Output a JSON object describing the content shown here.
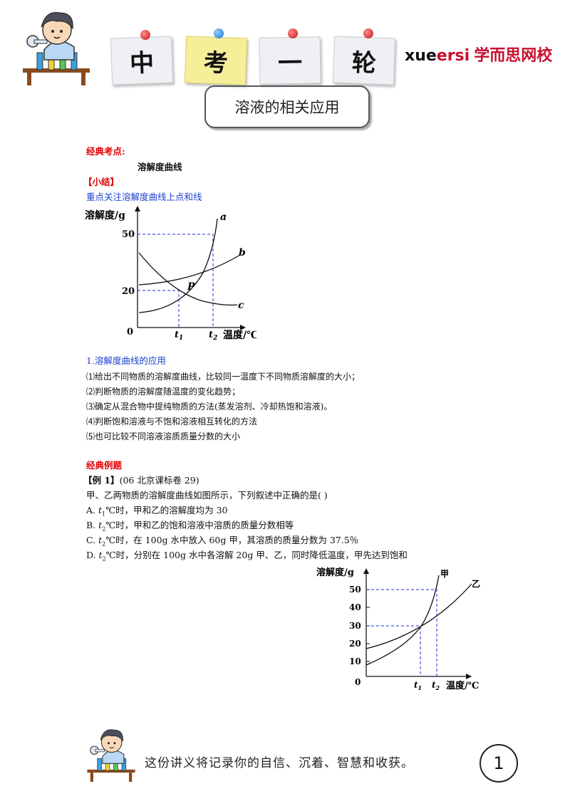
{
  "header": {
    "notes": [
      "中",
      "考",
      "一",
      "轮"
    ],
    "brand_en_1": "xue",
    "brand_en_2": "ersi",
    "brand_cn": "学而思网校"
  },
  "title": "溶液的相关应用",
  "section1": {
    "heading": "经典考点:",
    "subheading": "溶解度曲线",
    "summary_tag": "【小结】",
    "summary_text": "重点关注溶解度曲线上点和线"
  },
  "chart1_labels": {
    "ylabel": "溶解度/g",
    "xlabel": "温度/℃",
    "y50": "50",
    "y20": "20",
    "origin": "0",
    "t1": "t",
    "t1_sub": "1",
    "t2": "t",
    "t2_sub": "2",
    "a": "a",
    "b": "b",
    "c": "c",
    "p": "P"
  },
  "applications": {
    "title": "1.溶解度曲线的应用",
    "items": [
      "⑴给出不同物质的溶解度曲线，比较同一温度下不同物质溶解度的大小；",
      "⑵判断物质的溶解度随温度的变化趋势；",
      "⑶确定从混合物中提纯物质的方法(蒸发溶剂、冷却热饱和溶液)。",
      "⑷判断饱和溶液与不饱和溶液相互转化的方法",
      "⑸也可比较不同溶液溶质质量分数的大小"
    ]
  },
  "examples": {
    "heading": "经典例题",
    "ex1_tag": "【例 1】",
    "ex1_source": "(06 北京课标卷 29)",
    "question": "甲、乙两物质的溶解度曲线如图所示，下列叙述中正确的是(      )",
    "options": [
      {
        "letter": "A.",
        "t": "t",
        "sub": "1",
        "text": "℃时，甲和乙的溶解度均为 30"
      },
      {
        "letter": "B.",
        "t": "t",
        "sub": "2",
        "text": "℃时，甲和乙的饱和溶液中溶质的质量分数相等"
      },
      {
        "letter": "C.",
        "t": "t",
        "sub": "2",
        "text": "℃时，在 100g 水中放入 60g 甲，其溶质的质量分数为 37.5％"
      },
      {
        "letter": "D.",
        "t": "t",
        "sub": "2",
        "text": "℃时，分别在 100g 水中各溶解 20g 甲、乙，同时降低温度，甲先达到饱和"
      }
    ]
  },
  "chart2_labels": {
    "ylabel": "溶解度/g",
    "xlabel": "温度/℃",
    "yticks": [
      "50",
      "40",
      "30",
      "20",
      "10"
    ],
    "origin": "0",
    "t1": "t",
    "t1_sub": "1",
    "t2": "t",
    "t2_sub": "2",
    "jia": "甲",
    "yi": "乙"
  },
  "footer": {
    "text": "这份讲义将记录你的自信、沉着、智慧和收获。",
    "page": "1"
  },
  "colors": {
    "accent_red": "#e00000",
    "link_blue": "#1a3fcf",
    "dashed_guides": "#1a2fd0",
    "brand_red": "#c8102e"
  }
}
